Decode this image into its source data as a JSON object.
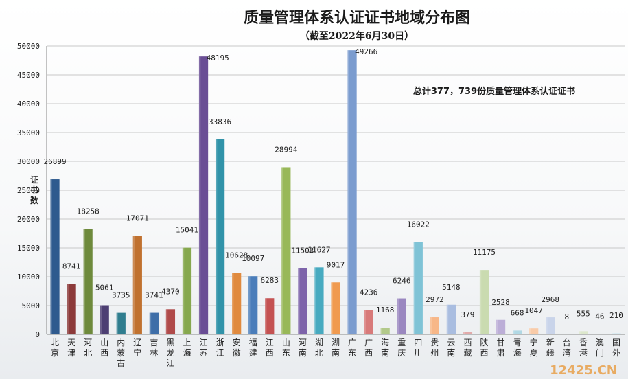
{
  "chart_data": {
    "type": "bar",
    "title": "质量管理体系认证证书地域分布图",
    "subtitle": "（截至2022年6月30日）",
    "ylabel": "证书数",
    "ylim": [
      0,
      50000
    ],
    "yticks": [
      0,
      5000,
      10000,
      15000,
      20000,
      25000,
      30000,
      35000,
      40000,
      45000,
      50000
    ],
    "grid": true,
    "annotation": "总计377，739份质量管理体系认证证书",
    "watermark": "12425.CN",
    "categories": [
      "北京",
      "天津",
      "河北",
      "山西",
      "内蒙古",
      "辽宁",
      "吉林",
      "黑龙江",
      "上海",
      "江苏",
      "浙江",
      "安徽",
      "福建",
      "江西",
      "山东",
      "河南",
      "湖北",
      "湖南",
      "广东",
      "广西",
      "海南",
      "重庆",
      "四川",
      "贵州",
      "云南",
      "西藏",
      "陕西",
      "甘肃",
      "青海",
      "宁夏",
      "新疆",
      "台湾",
      "香港",
      "澳门",
      "国外"
    ],
    "values": [
      26899,
      8741,
      18258,
      5061,
      3735,
      17071,
      3741,
      4370,
      15041,
      48195,
      33836,
      10628,
      10097,
      6283,
      28994,
      11503,
      11627,
      9017,
      49266,
      4236,
      1168,
      6246,
      16022,
      2972,
      5148,
      379,
      11175,
      2528,
      668,
      1047,
      2968,
      8,
      555,
      46,
      210
    ],
    "colors": [
      "#2e5a8e",
      "#8c3a3a",
      "#6e8a3c",
      "#4d3f73",
      "#2f7d8f",
      "#c0712f",
      "#3e6ea8",
      "#b04a4a",
      "#86a84e",
      "#6a4e95",
      "#3193a9",
      "#e08a3e",
      "#4a7dba",
      "#c45252",
      "#98b858",
      "#7d63aa",
      "#47aac0",
      "#f09a4f",
      "#7b9ccf",
      "#d87a7a",
      "#b2c98a",
      "#9a87c0",
      "#7fc3d6",
      "#f7b788",
      "#a9bde0",
      "#e2aaaa",
      "#cadbb0",
      "#bcaed7",
      "#b0d8e4",
      "#f9cba8",
      "#c9d4ea",
      "#edcccc",
      "#dce7cc",
      "#d7cfe6",
      "#d3e9f0"
    ],
    "label_offsets": [
      0,
      0,
      0,
      0,
      0,
      0,
      0,
      0,
      0,
      0,
      0,
      0,
      0,
      0,
      0,
      0,
      0,
      0,
      0,
      0,
      0,
      0,
      0,
      0,
      0,
      0,
      0,
      0,
      0,
      0,
      0,
      0,
      0,
      0,
      0
    ]
  }
}
